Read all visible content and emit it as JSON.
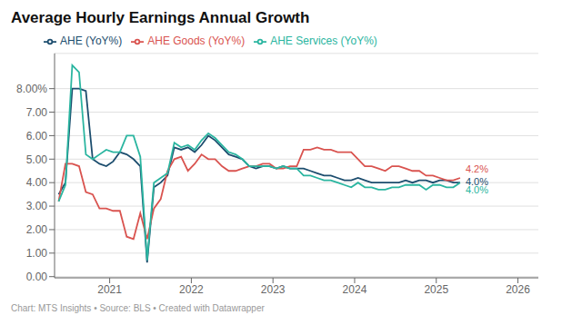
{
  "chart_data": {
    "type": "line",
    "title": "Average Hourly Earnings Annual Growth",
    "footer": "Chart: MTS Insights • Source: BLS • Created with Datawrapper",
    "x": [
      2020.375,
      2020.4583333333,
      2020.5416666667,
      2020.625,
      2020.7083333333,
      2020.7916666667,
      2020.875,
      2020.9583333333,
      2021.0416666667,
      2021.125,
      2021.2083333333,
      2021.2916666667,
      2021.375,
      2021.4583333333,
      2021.5416666667,
      2021.625,
      2021.7083333333,
      2021.7916666667,
      2021.875,
      2021.9583333333,
      2022.0416666667,
      2022.125,
      2022.2083333333,
      2022.2916666667,
      2022.375,
      2022.4583333333,
      2022.5416666667,
      2022.625,
      2022.7083333333,
      2022.7916666667,
      2022.875,
      2022.9583333333,
      2023.0416666667,
      2023.125,
      2023.2083333333,
      2023.2916666667,
      2023.375,
      2023.4583333333,
      2023.5416666667,
      2023.625,
      2023.7083333333,
      2023.7916666667,
      2023.875,
      2023.9583333333,
      2024.0416666667,
      2024.125,
      2024.2083333333,
      2024.2916666667,
      2024.375,
      2024.4583333333,
      2024.5416666667,
      2024.625,
      2024.7083333333,
      2024.7916666667,
      2024.875,
      2024.9583333333,
      2025.0416666667,
      2025.125,
      2025.2083333333,
      2025.2916666667
    ],
    "series": [
      {
        "name": "AHE (YoY%)",
        "color": "#1c4d6e",
        "values": [
          3.5,
          4.0,
          8.0,
          8.0,
          7.9,
          5.0,
          4.8,
          4.7,
          4.9,
          5.3,
          5.2,
          5.0,
          4.7,
          0.6,
          3.8,
          4.0,
          4.3,
          5.5,
          5.4,
          5.5,
          5.3,
          5.6,
          6.0,
          5.8,
          5.5,
          5.2,
          5.1,
          5.0,
          4.7,
          4.6,
          4.7,
          4.7,
          4.6,
          4.7,
          4.6,
          4.6,
          4.6,
          4.5,
          4.4,
          4.3,
          4.3,
          4.2,
          4.1,
          4.1,
          4.2,
          4.1,
          4.0,
          4.0,
          4.0,
          4.0,
          4.0,
          4.1,
          4.0,
          4.1,
          4.1,
          4.0,
          4.1,
          4.1,
          4.0,
          4.0
        ]
      },
      {
        "name": "AHE Goods (YoY%)",
        "color": "#d9534f",
        "values": [
          3.2,
          4.8,
          4.8,
          4.7,
          3.6,
          3.5,
          2.9,
          2.9,
          2.8,
          2.8,
          1.7,
          1.6,
          2.7,
          1.6,
          2.9,
          3.3,
          4.5,
          5.0,
          5.1,
          4.5,
          4.8,
          5.2,
          5.0,
          5.0,
          4.7,
          4.5,
          4.5,
          4.6,
          4.7,
          4.7,
          4.8,
          4.8,
          4.6,
          4.6,
          4.7,
          4.7,
          5.4,
          5.4,
          5.5,
          5.4,
          5.4,
          5.3,
          5.3,
          5.3,
          5.0,
          4.7,
          4.7,
          4.6,
          4.5,
          4.7,
          4.7,
          4.6,
          4.5,
          4.5,
          4.3,
          4.3,
          4.2,
          4.1,
          4.1,
          4.2
        ]
      },
      {
        "name": "AHE Services (YoY%)",
        "color": "#2ab5a0",
        "values": [
          3.2,
          3.9,
          9.0,
          8.7,
          5.2,
          5.0,
          5.2,
          5.4,
          5.3,
          5.3,
          6.0,
          6.0,
          5.1,
          0.7,
          4.0,
          4.2,
          4.4,
          5.7,
          5.5,
          5.6,
          5.4,
          5.8,
          6.1,
          5.9,
          5.6,
          5.3,
          5.2,
          5.0,
          4.7,
          4.7,
          4.7,
          4.7,
          4.6,
          4.7,
          4.6,
          4.6,
          4.3,
          4.3,
          4.2,
          4.1,
          4.1,
          4.0,
          3.9,
          3.8,
          4.0,
          3.8,
          3.8,
          3.7,
          3.7,
          3.8,
          3.8,
          3.9,
          3.9,
          3.9,
          3.7,
          3.9,
          3.9,
          3.8,
          3.8,
          4.0
        ]
      }
    ],
    "annotations": [
      {
        "text": "4.2%",
        "series": "AHE Goods (YoY%)",
        "color": "#d9534f"
      },
      {
        "text": "4.0%",
        "series": "AHE (YoY%)",
        "color": "#1c4d6e"
      },
      {
        "text": "4.0%",
        "series": "AHE Services (YoY%)",
        "color": "#2ab5a0"
      }
    ],
    "xlim": [
      2020.325,
      2026.25
    ],
    "xticks": [
      2021,
      2022,
      2023,
      2024,
      2025,
      2026
    ],
    "ylim": [
      -0.05,
      9.5
    ],
    "yticks": [
      {
        "value": 0,
        "label": "0.00"
      },
      {
        "value": 1,
        "label": "1.00"
      },
      {
        "value": 2,
        "label": "2.00"
      },
      {
        "value": 3,
        "label": "3.00"
      },
      {
        "value": 4,
        "label": "4.00"
      },
      {
        "value": 5,
        "label": "5.00"
      },
      {
        "value": 6,
        "label": "6.00"
      },
      {
        "value": 7,
        "label": "7.00"
      },
      {
        "value": 8,
        "label": "8.00%"
      }
    ],
    "grid": "y",
    "legend": "top-left"
  }
}
